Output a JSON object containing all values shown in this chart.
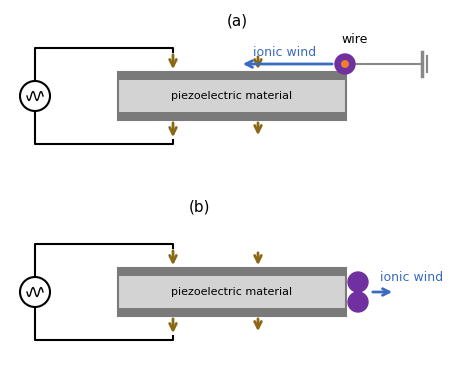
{
  "fig_width": 4.74,
  "fig_height": 3.85,
  "dpi": 100,
  "bg_color": "#ffffff",
  "label_a": "(a)",
  "label_b": "(b)",
  "piezo_color_light": "#d3d3d3",
  "piezo_color_dark": "#7a7a7a",
  "piezo_text": "piezoelectric material",
  "wire_label": "wire",
  "ionic_wind_label": "ionic wind",
  "ionic_wind_color": "#3a6bbf",
  "arrow_color": "#8B6914",
  "wire_circle_color": "#7030a0",
  "wire_dot_color": "#ed7d31",
  "circuit_line_color": "#000000"
}
